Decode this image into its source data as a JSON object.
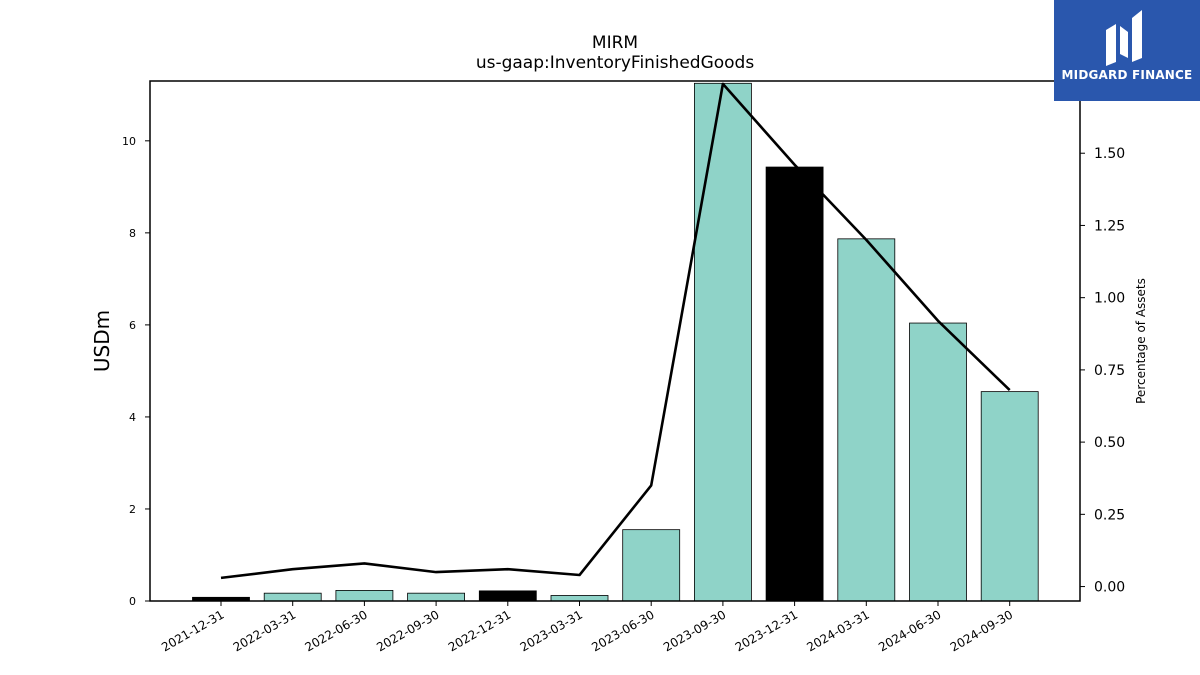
{
  "chart_data": {
    "type": "bar",
    "title": "MIRM",
    "subtitle": "us-gaap:InventoryFinishedGoods",
    "ylabel": "USDm",
    "y2label": "Percentage of Assets",
    "categories": [
      "2021-12-31",
      "2022-03-31",
      "2022-06-30",
      "2022-09-30",
      "2022-12-31",
      "2023-03-31",
      "2023-06-30",
      "2023-09-30",
      "2023-12-31",
      "2024-03-31",
      "2024-06-30",
      "2024-09-30"
    ],
    "bar_values": [
      0.08,
      0.17,
      0.23,
      0.17,
      0.22,
      0.12,
      1.55,
      11.25,
      9.43,
      7.87,
      6.04,
      4.55
    ],
    "bar_colors": [
      "#000000",
      "#8fd3c8",
      "#8fd3c8",
      "#8fd3c8",
      "#000000",
      "#8fd3c8",
      "#8fd3c8",
      "#8fd3c8",
      "#000000",
      "#8fd3c8",
      "#8fd3c8",
      "#8fd3c8"
    ],
    "line_values": [
      0.03,
      0.06,
      0.08,
      0.05,
      0.06,
      0.04,
      0.35,
      1.74,
      1.46,
      1.2,
      0.92,
      0.68
    ],
    "ylim": [
      0,
      11.3
    ],
    "y2lim": [
      -0.05,
      1.75
    ],
    "yticks": [
      0,
      2,
      4,
      6,
      8,
      10
    ],
    "y2ticks": [
      0.0,
      0.25,
      0.5,
      0.75,
      1.0,
      1.25,
      1.5
    ],
    "y2tick_labels": [
      "0.00",
      "0.25",
      "0.50",
      "0.75",
      "1.00",
      "1.25",
      "1.50"
    ],
    "grid": false,
    "line_color": "#000000"
  },
  "logo": {
    "text": "MIDGARD FINANCE",
    "background": "#2a57ad"
  }
}
